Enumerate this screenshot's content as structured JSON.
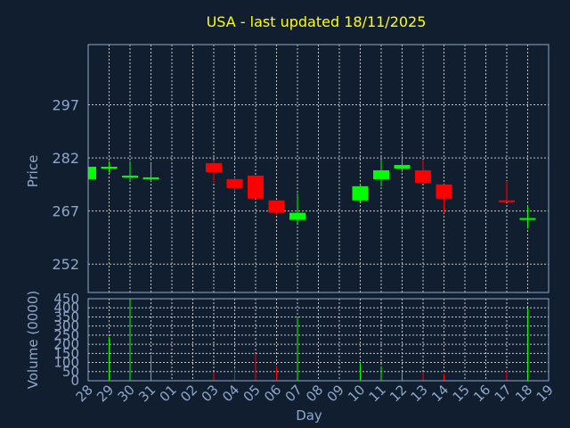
{
  "chart_data": {
    "type": "candlestick",
    "title": "USA - last updated 18/11/2025",
    "xlabel": "Day",
    "price_panel": {
      "ylabel": "Price",
      "yticks": [
        252,
        267,
        282,
        297
      ],
      "ylim": [
        244,
        314
      ]
    },
    "volume_panel": {
      "ylabel": "Volume (0000)",
      "yticks": [
        0,
        50,
        100,
        150,
        200,
        250,
        300,
        350,
        400,
        450
      ],
      "ylim": [
        0,
        450
      ]
    },
    "x_tick_labels": [
      "28",
      "29",
      "30",
      "31",
      "01",
      "02",
      "03",
      "04",
      "05",
      "06",
      "07",
      "08",
      "09",
      "10",
      "11",
      "12",
      "13",
      "14",
      "15",
      "16",
      "17",
      "18",
      "19"
    ],
    "series": [
      {
        "day": "28",
        "open": 276,
        "high": 280,
        "low": 276,
        "close": 279.5,
        "volume": 0
      },
      {
        "day": "29",
        "open": 279.5,
        "high": 281,
        "low": 278,
        "close": 279.5,
        "volume": 240
      },
      {
        "day": "30",
        "open": 276.5,
        "high": 281,
        "low": 275.5,
        "close": 277,
        "volume": 450
      },
      {
        "day": "31",
        "open": 276,
        "high": 280.5,
        "low": 275.5,
        "close": 276.5,
        "volume": 140
      },
      {
        "day": "03",
        "open": 280.5,
        "high": 281,
        "low": 275,
        "close": 278,
        "volume": 45
      },
      {
        "day": "04",
        "open": 276,
        "high": 276.5,
        "low": 272.5,
        "close": 273.5,
        "volume": 70
      },
      {
        "day": "05",
        "open": 277,
        "high": 277,
        "low": 270.5,
        "close": 270.5,
        "volume": 150
      },
      {
        "day": "06",
        "open": 270,
        "high": 270,
        "low": 266,
        "close": 266.5,
        "volume": 80
      },
      {
        "day": "07",
        "open": 264.5,
        "high": 272,
        "low": 263.5,
        "close": 266.5,
        "volume": 350
      },
      {
        "day": "10",
        "open": 270,
        "high": 274.5,
        "low": 269.5,
        "close": 274,
        "volume": 100
      },
      {
        "day": "11",
        "open": 276,
        "high": 281.5,
        "low": 274,
        "close": 278.5,
        "volume": 80
      },
      {
        "day": "12",
        "open": 279,
        "high": 283,
        "low": 278,
        "close": 280,
        "volume": 45
      },
      {
        "day": "13",
        "open": 278.5,
        "high": 281.5,
        "low": 275,
        "close": 275,
        "volume": 45
      },
      {
        "day": "14",
        "open": 274.5,
        "high": 274.5,
        "low": 266.5,
        "close": 270.5,
        "volume": 40
      },
      {
        "day": "17",
        "open": 270,
        "high": 275.5,
        "low": 269.5,
        "close": 269.5,
        "volume": 60
      },
      {
        "day": "18",
        "open": 265,
        "high": 268.5,
        "low": 262,
        "close": 265,
        "volume": 400
      }
    ],
    "colors": {
      "up": "#00ff00",
      "down": "#ff0000",
      "grid": "#d8d8d8",
      "axis_text": "#8fa6c9",
      "title": "#ffff00",
      "background": "#111e2f"
    }
  }
}
